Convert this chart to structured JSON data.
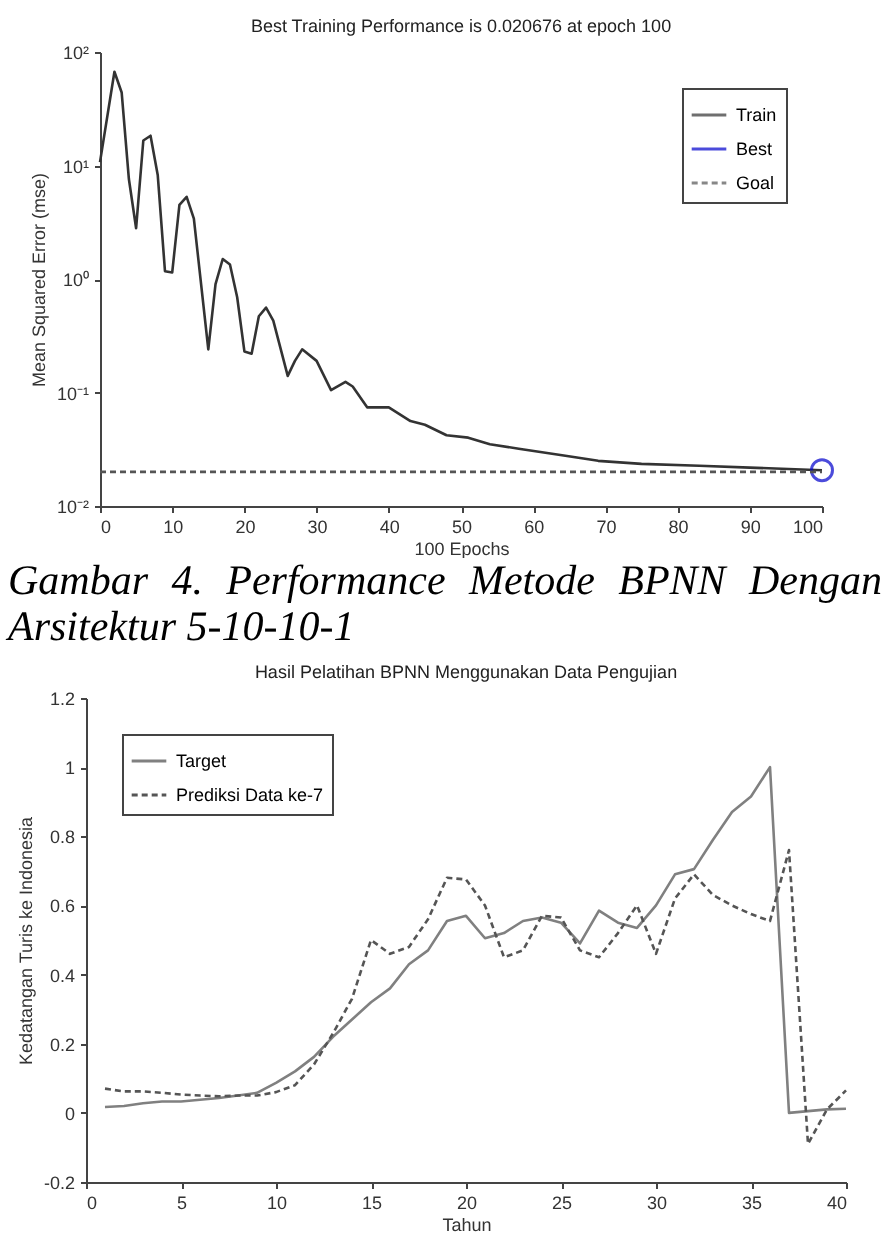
{
  "chart_data": [
    {
      "type": "line",
      "title": "Best Training Performance is 0.020676 at epoch 100",
      "xlabel": "100 Epochs",
      "ylabel": "Mean Squared Error  (mse)",
      "log": "y",
      "legend": "top right",
      "xlim": [
        0,
        100
      ],
      "xticks": [
        0,
        10,
        20,
        30,
        40,
        50,
        60,
        70,
        80,
        90,
        100
      ],
      "ylim": [
        0.01,
        100
      ],
      "yticks": [
        {
          "value": 0.01,
          "label": "10⁻²"
        },
        {
          "value": 0.1,
          "label": "10⁻¹"
        },
        {
          "value": 1,
          "label": "10⁰"
        },
        {
          "value": 10,
          "label": "10¹"
        },
        {
          "value": 100,
          "label": "10²"
        }
      ],
      "series": [
        {
          "name": "Train",
          "color": "#333333",
          "line_style": "solid",
          "x": [
            0,
            2,
            3,
            4,
            5,
            6,
            7,
            8,
            9,
            10,
            11,
            12,
            13,
            15,
            16,
            17,
            18,
            19,
            20,
            21,
            22,
            23,
            24,
            26,
            27,
            28,
            30,
            32,
            34,
            35,
            37,
            40,
            43,
            45,
            48,
            51,
            54,
            58,
            64,
            69,
            75,
            83,
            90,
            100
          ],
          "values": [
            10.7,
            67,
            44,
            7.6,
            2.8,
            16.6,
            18.3,
            8.2,
            1.17,
            1.14,
            4.5,
            5.3,
            3.4,
            0.24,
            0.9,
            1.5,
            1.34,
            0.69,
            0.23,
            0.22,
            0.47,
            0.56,
            0.43,
            0.14,
            0.19,
            0.24,
            0.19,
            0.105,
            0.124,
            0.113,
            0.074,
            0.074,
            0.056,
            0.052,
            0.042,
            0.04,
            0.035,
            0.032,
            0.028,
            0.025,
            0.0235,
            0.0226,
            0.0218,
            0.020676
          ]
        },
        {
          "name": "Best",
          "type": "scatter",
          "marker": "circle",
          "color": "#0000cc",
          "x": [
            100
          ],
          "values": [
            0.020676
          ]
        },
        {
          "name": "Goal",
          "color": "#555555",
          "line_style": "dashed",
          "x": [
            0,
            100
          ],
          "values": [
            0.02,
            0.02
          ]
        }
      ],
      "annotations": [
        "Gambar 4. Performance Metode BPNN Dengan Arsitektur 5-10-10-1"
      ]
    },
    {
      "type": "line",
      "title": "Hasil Pelatihan BPNN Menggunakan Data Pengujian",
      "xlabel": "Tahun",
      "ylabel": "Kedatangan Turis ke Indonesia",
      "legend": "top left",
      "xlim": [
        0,
        40
      ],
      "xticks": [
        0,
        5,
        10,
        15,
        20,
        25,
        30,
        35,
        40
      ],
      "ylim": [
        -0.2,
        1.2
      ],
      "yticks": [
        -0.2,
        0,
        0.2,
        0.4,
        0.6,
        0.8,
        1,
        1.2
      ],
      "x": [
        1,
        2,
        3,
        4,
        5,
        6,
        7,
        8,
        9,
        10,
        11,
        12,
        13,
        14,
        15,
        16,
        17,
        18,
        19,
        20,
        21,
        22,
        23,
        24,
        25,
        26,
        27,
        28,
        29,
        30,
        31,
        32,
        33,
        34,
        35,
        36,
        37,
        38,
        39,
        40
      ],
      "series": [
        {
          "name": "Target",
          "color": "#808080",
          "line_style": "solid",
          "values": [
            0.017,
            0.02,
            0.028,
            0.033,
            0.033,
            0.038,
            0.043,
            0.05,
            0.058,
            0.087,
            0.12,
            0.162,
            0.22,
            0.27,
            0.32,
            0.36,
            0.43,
            0.47,
            0.555,
            0.57,
            0.505,
            0.52,
            0.555,
            0.565,
            0.55,
            0.49,
            0.585,
            0.55,
            0.535,
            0.6,
            0.69,
            0.705,
            0.79,
            0.87,
            0.915,
            1.0,
            0.0,
            0.005,
            0.01,
            0.012
          ]
        },
        {
          "name": "Prediksi Data ke-7",
          "color": "#555555",
          "line_style": "dashed",
          "values": [
            0.07,
            0.062,
            0.062,
            0.058,
            0.053,
            0.05,
            0.048,
            0.05,
            0.05,
            0.06,
            0.08,
            0.14,
            0.23,
            0.33,
            0.5,
            0.46,
            0.48,
            0.56,
            0.68,
            0.675,
            0.6,
            0.45,
            0.47,
            0.57,
            0.565,
            0.47,
            0.45,
            0.52,
            0.6,
            0.46,
            0.62,
            0.69,
            0.63,
            0.6,
            0.575,
            0.555,
            0.76,
            -0.09,
            0.01,
            0.065
          ]
        }
      ]
    }
  ]
}
